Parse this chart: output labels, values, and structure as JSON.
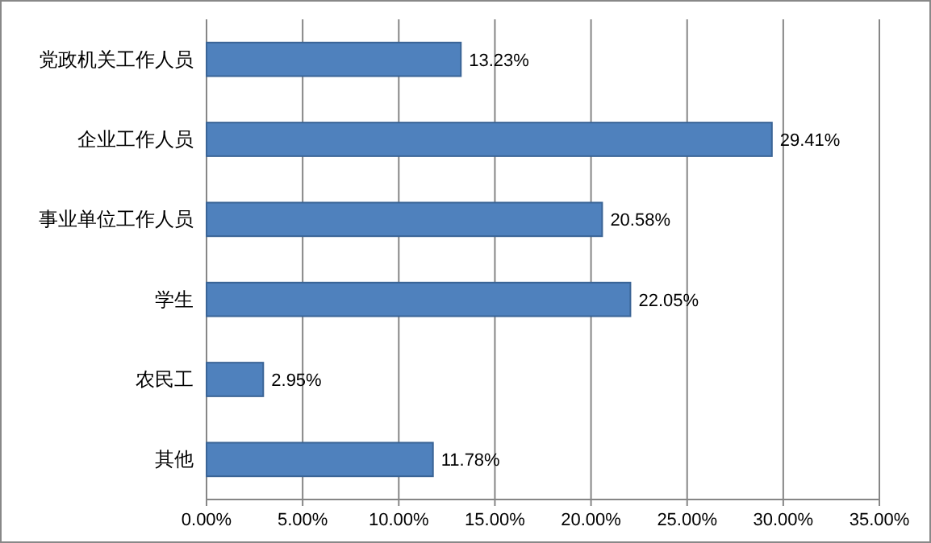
{
  "chart_data": {
    "type": "bar",
    "orientation": "horizontal",
    "categories": [
      "党政机关工作人员",
      "企业工作人员",
      "事业单位工作人员",
      "学生",
      "农民工",
      "其他"
    ],
    "values": [
      13.23,
      29.41,
      20.58,
      22.05,
      2.95,
      11.78
    ],
    "value_labels": [
      "13.23%",
      "29.41%",
      "20.58%",
      "22.05%",
      "2.95%",
      "11.78%"
    ],
    "color": "#4f81bd",
    "xlim": [
      0,
      35
    ],
    "xticks": [
      {
        "value": 0,
        "label": "0.00%"
      },
      {
        "value": 5,
        "label": "5.00%"
      },
      {
        "value": 10,
        "label": "10.00%"
      },
      {
        "value": 15,
        "label": "15.00%"
      },
      {
        "value": 20,
        "label": "20.00%"
      },
      {
        "value": 25,
        "label": "25.00%"
      },
      {
        "value": 30,
        "label": "30.00%"
      },
      {
        "value": 35,
        "label": "35.00%"
      }
    ],
    "grid": "x"
  }
}
